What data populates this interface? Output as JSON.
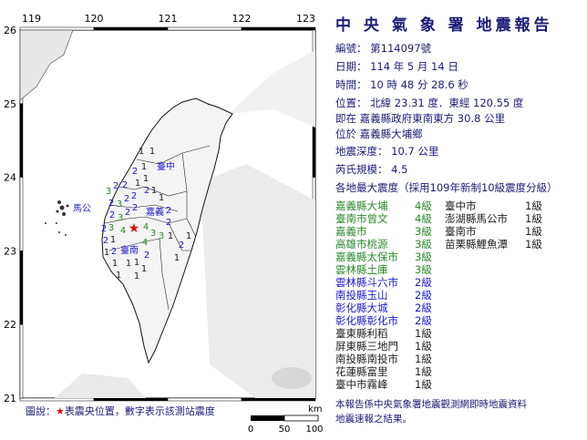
{
  "report": {
    "title": "中 央 氣 象 署 地震報告",
    "number": "編號： 第114097號",
    "date": "日期： 114 年 5 月 14 日",
    "time": "時間： 10 時 48 分 28.6 秒",
    "location": "位置： 北緯 23.31 度．東經 120.55 度",
    "relative": "即在 嘉義縣政府東南東方 30.8 公里",
    "township": "位於 嘉義縣大埔鄉",
    "depth": "地震深度： 10.7 公里",
    "magnitude": "芮氏規模： 4.5",
    "intensity_heading": "各地最大震度（採用109年新制10級震度分級）",
    "intensities_left": [
      {
        "place": "嘉義縣大埔",
        "level": "4級"
      },
      {
        "place": "臺南市曾文",
        "level": "4級"
      },
      {
        "place": "嘉義市",
        "level": "3級"
      },
      {
        "place": "高雄市桃源",
        "level": "3級"
      },
      {
        "place": "嘉義縣太保市",
        "level": "3級"
      },
      {
        "place": "雲林縣土庫",
        "level": "3級"
      },
      {
        "place": "雲林縣斗六市",
        "level": "2級"
      },
      {
        "place": "南投縣玉山",
        "level": "2級"
      },
      {
        "place": "彰化縣大城",
        "level": "2級"
      },
      {
        "place": "彰化縣彰化市",
        "level": "2級"
      },
      {
        "place": "臺東縣利稻",
        "level": "1級"
      },
      {
        "place": "屏東縣三地門",
        "level": "1級"
      },
      {
        "place": "南投縣南投市",
        "level": "1級"
      },
      {
        "place": "花蓮縣富里",
        "level": "1級"
      },
      {
        "place": "臺中市霧峰",
        "level": "1級"
      }
    ],
    "intensities_right": [
      {
        "place": "臺中市",
        "level": "1級"
      },
      {
        "place": "澎湖縣馬公市",
        "level": "1級"
      },
      {
        "place": "臺南市",
        "level": "1級"
      },
      {
        "place": "苗栗縣鯉魚潭",
        "level": "1級"
      }
    ],
    "footer_line1": "本報告係中央氣象署地震觀測網即時地震資料",
    "footer_line2": "地震速報之結果。"
  },
  "map": {
    "lon_ticks": [
      "119",
      "120",
      "121",
      "122",
      "123"
    ],
    "lat_ticks": [
      "26",
      "25",
      "24",
      "23",
      "22",
      "21"
    ],
    "city_labels": [
      "臺中",
      "嘉義",
      "臺南",
      "馬公"
    ],
    "epicenter": {
      "lat": 23.31,
      "lon": 120.55,
      "color": "#e01010"
    },
    "station_intensities": [
      1,
      1,
      1,
      2,
      1,
      1,
      2,
      2,
      2,
      3,
      2,
      1,
      2,
      3,
      2,
      1,
      2,
      2,
      3,
      2,
      3,
      2,
      2,
      4,
      2,
      4,
      4,
      3,
      3,
      1,
      1,
      1,
      2,
      2,
      2,
      2,
      1,
      1,
      1,
      1,
      1,
      1,
      1,
      1
    ],
    "intensity_colors": {
      "1": "#222222",
      "2": "#1a1acc",
      "3": "#2a8a2a",
      "4": "#2a8a2a"
    },
    "legend": "圖說：",
    "legend_star": "★",
    "legend_text": "表震央位置，數字表示該測站震度",
    "scale": {
      "unit": "km",
      "labels": [
        "0",
        "50",
        "100"
      ]
    }
  }
}
